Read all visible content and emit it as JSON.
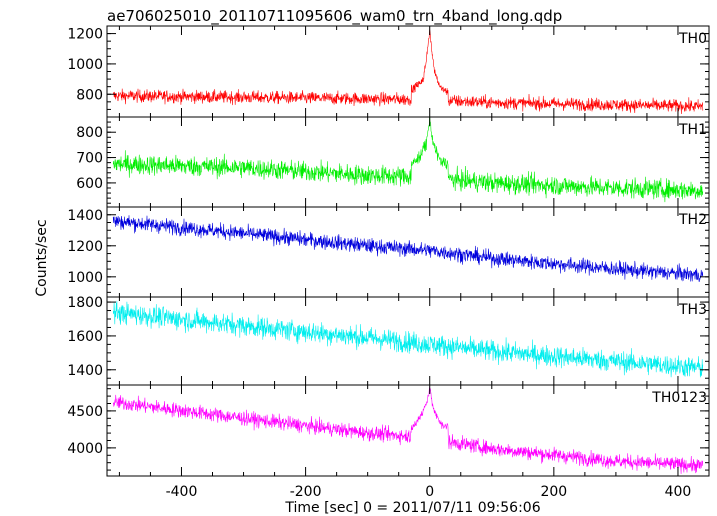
{
  "title": "ae706025010_20110711095606_wam0_trn_4band_long.qdp",
  "chart_data": {
    "type": "line",
    "xlabel": "Time [sec] 0 = 2011/07/11 09:56:06",
    "ylabel": "Counts/sec",
    "xlim": [
      -520,
      450
    ],
    "xticks": [
      -400,
      -200,
      0,
      200,
      400
    ],
    "legend": "top-right label inside each panel",
    "panels": [
      {
        "name": "TH0",
        "color": "#ff0000",
        "ylim": [
          650,
          1250
        ],
        "yticks": [
          800,
          1000,
          1200
        ],
        "trend": [
          [
            -510,
            790
          ],
          [
            -300,
            780
          ],
          [
            -100,
            770
          ],
          [
            -20,
            765
          ],
          [
            100,
            745
          ],
          [
            300,
            730
          ],
          [
            440,
            720
          ]
        ],
        "noise": 30,
        "spikes": [
          [
            -25,
            840
          ],
          [
            -10,
            900
          ],
          [
            -5,
            1050
          ],
          [
            0,
            1230
          ],
          [
            3,
            1100
          ],
          [
            8,
            950
          ],
          [
            15,
            860
          ],
          [
            25,
            820
          ]
        ]
      },
      {
        "name": "TH1",
        "color": "#00ee00",
        "ylim": [
          505,
          860
        ],
        "yticks": [
          600,
          700,
          800
        ],
        "trend": [
          [
            -510,
            675
          ],
          [
            -300,
            660
          ],
          [
            -100,
            630
          ],
          [
            -20,
            625
          ],
          [
            100,
            600
          ],
          [
            300,
            580
          ],
          [
            440,
            570
          ]
        ],
        "noise": 28,
        "spikes": [
          [
            -25,
            680
          ],
          [
            -12,
            720
          ],
          [
            -5,
            760
          ],
          [
            0,
            850
          ],
          [
            4,
            780
          ],
          [
            10,
            720
          ],
          [
            20,
            680
          ]
        ]
      },
      {
        "name": "TH2",
        "color": "#0000dd",
        "ylim": [
          870,
          1450
        ],
        "yticks": [
          1000,
          1200,
          1400
        ],
        "trend": [
          [
            -510,
            1360
          ],
          [
            -300,
            1280
          ],
          [
            -100,
            1200
          ],
          [
            0,
            1170
          ],
          [
            100,
            1120
          ],
          [
            300,
            1050
          ],
          [
            440,
            1010
          ]
        ],
        "noise": 35,
        "spikes": []
      },
      {
        "name": "TH3",
        "color": "#00eeee",
        "ylim": [
          1310,
          1830
        ],
        "yticks": [
          1400,
          1600,
          1800
        ],
        "trend": [
          [
            -510,
            1740
          ],
          [
            -300,
            1660
          ],
          [
            -100,
            1590
          ],
          [
            0,
            1550
          ],
          [
            100,
            1510
          ],
          [
            300,
            1450
          ],
          [
            440,
            1410
          ]
        ],
        "noise": 45,
        "spikes": []
      },
      {
        "name": "TH0123",
        "color": "#ff00ff",
        "ylim": [
          3620,
          4850
        ],
        "yticks": [
          4000,
          4500
        ],
        "trend": [
          [
            -510,
            4620
          ],
          [
            -300,
            4400
          ],
          [
            -100,
            4200
          ],
          [
            -20,
            4150
          ],
          [
            100,
            3990
          ],
          [
            300,
            3820
          ],
          [
            440,
            3760
          ]
        ],
        "noise": 70,
        "spikes": [
          [
            -25,
            4300
          ],
          [
            -10,
            4500
          ],
          [
            -4,
            4650
          ],
          [
            0,
            4800
          ],
          [
            4,
            4600
          ],
          [
            10,
            4450
          ],
          [
            20,
            4300
          ]
        ]
      }
    ]
  }
}
